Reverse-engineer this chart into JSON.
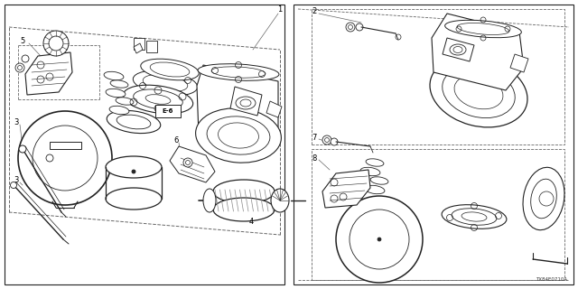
{
  "bg_color": "#ffffff",
  "diagram_code": "TX84E0710A",
  "line_color": "#222222",
  "dashed_color": "#666666"
}
